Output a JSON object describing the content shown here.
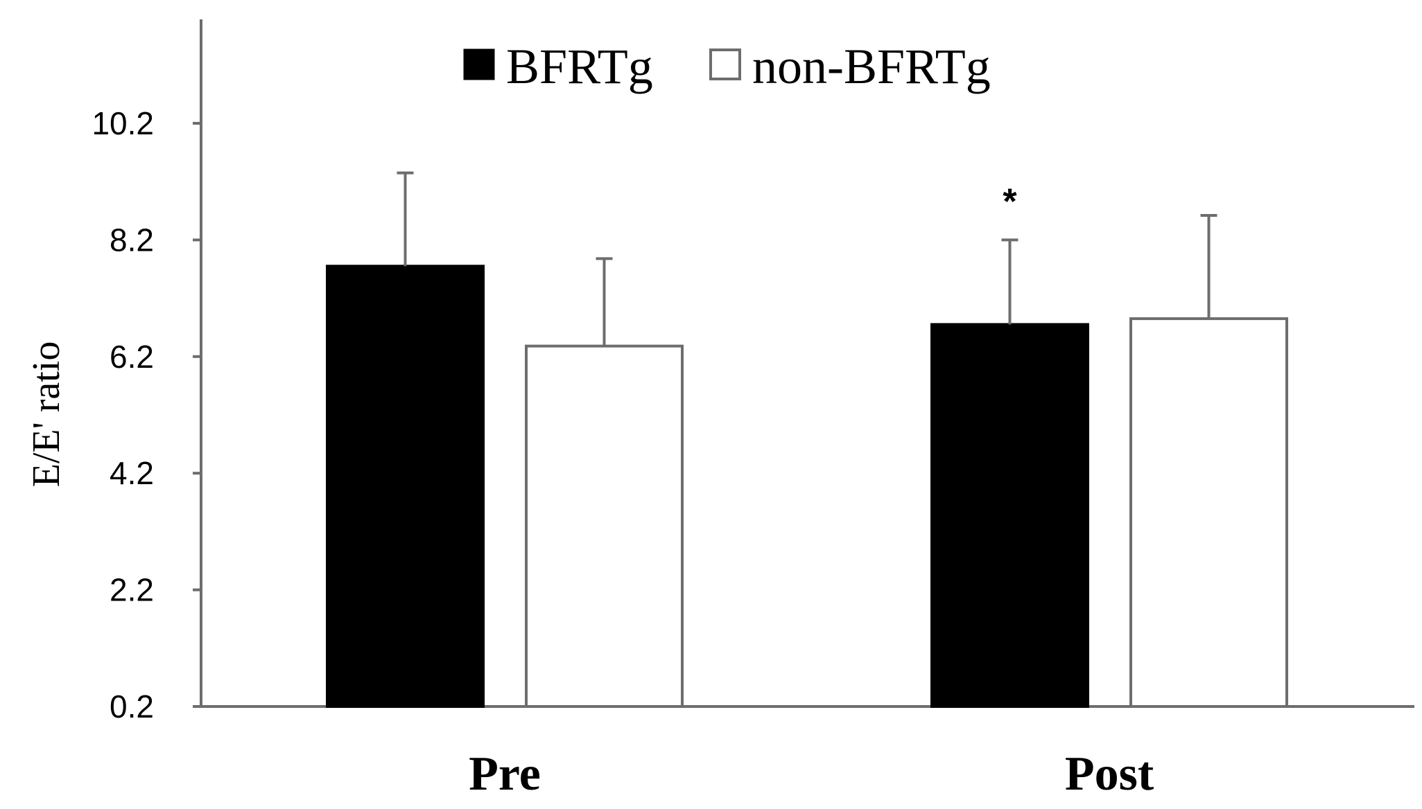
{
  "chart_data": {
    "type": "bar",
    "title": "",
    "xlabel": "",
    "ylabel": "E/E' ratio",
    "ylim": [
      0.2,
      11.9
    ],
    "yticks": [
      "0.2",
      "2.2",
      "4.2",
      "6.2",
      "8.2",
      "10.2"
    ],
    "grid": false,
    "legend_position": "top-center",
    "categories": [
      "Pre",
      "Post"
    ],
    "series": [
      {
        "name": "BFRTg",
        "color": "#000000",
        "fill": "black",
        "values": [
          7.75,
          6.75
        ],
        "errors": [
          1.6,
          1.45
        ],
        "annotations": [
          "",
          "*"
        ]
      },
      {
        "name": "non-BFRTg",
        "color": "#ffffff",
        "outline": "#6d6d6d",
        "fill": "white",
        "values": [
          6.38,
          6.85
        ],
        "errors": [
          1.5,
          1.77
        ],
        "annotations": [
          "",
          ""
        ]
      }
    ]
  }
}
